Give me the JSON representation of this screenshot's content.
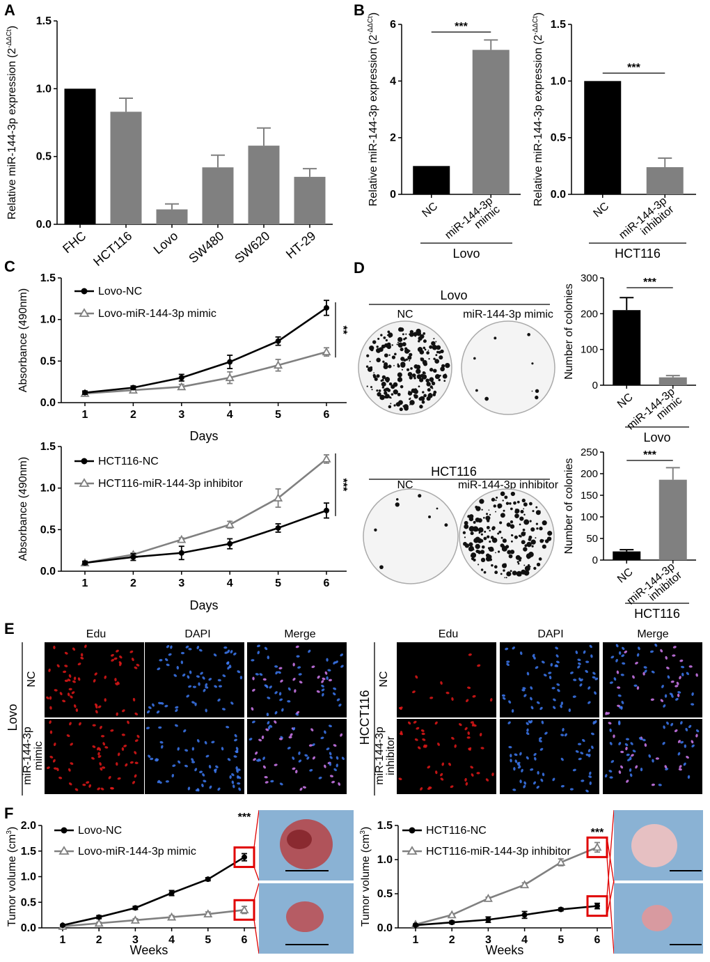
{
  "colors": {
    "black": "#000000",
    "gray": "#808080",
    "red": "#e00000",
    "dish": "#efefef"
  },
  "panels": {
    "A": "A",
    "B": "B",
    "C": "C",
    "D": "D",
    "E": "E",
    "F": "F"
  },
  "chart_data": [
    {
      "id": "A",
      "type": "bar",
      "ylabel": "Relative miR-144-3p expression (2-ΔΔCt)",
      "categories": [
        "FHC",
        "HCT116",
        "Lovo",
        "SW480",
        "SW620",
        "HT-29"
      ],
      "values": [
        1.0,
        0.83,
        0.11,
        0.42,
        0.58,
        0.35
      ],
      "errors": [
        0,
        0.1,
        0.04,
        0.09,
        0.13,
        0.06
      ],
      "bar_colors": [
        "black",
        "gray",
        "gray",
        "gray",
        "gray",
        "gray"
      ],
      "yticks": [
        "0.0",
        "0.5",
        "1.0",
        "1.5"
      ],
      "ylim": [
        0,
        1.5
      ]
    },
    {
      "id": "B1",
      "type": "bar",
      "ylabel": "Relative miR-144-3p expression (2-ΔΔCt)",
      "categories": [
        "NC",
        "miR-144-3p mimic"
      ],
      "values": [
        1.0,
        5.1
      ],
      "errors": [
        0,
        0.35
      ],
      "bar_colors": [
        "black",
        "gray"
      ],
      "yticks": [
        "0",
        "2",
        "4",
        "6"
      ],
      "ylim": [
        0,
        6
      ],
      "group": "Lovo",
      "significance": "***"
    },
    {
      "id": "B2",
      "type": "bar",
      "ylabel": "Relative miR-144-3p expression (2-ΔΔCt)",
      "categories": [
        "NC",
        "miR-144-3p inhibitor"
      ],
      "values": [
        1.0,
        0.24
      ],
      "errors": [
        0,
        0.08
      ],
      "bar_colors": [
        "black",
        "gray"
      ],
      "yticks": [
        "0.0",
        "0.5",
        "1.0",
        "1.5"
      ],
      "ylim": [
        0,
        1.5
      ],
      "group": "HCT116",
      "significance": "***"
    },
    {
      "id": "C1",
      "type": "line",
      "xlabel": "Days",
      "ylabel": "Absorbance (490nm)",
      "x": [
        1,
        2,
        3,
        4,
        5,
        6
      ],
      "xticks": [
        "1",
        "2",
        "3",
        "4",
        "5",
        "6"
      ],
      "yticks": [
        "0.0",
        "0.5",
        "1.0",
        "1.5"
      ],
      "ylim": [
        0,
        1.5
      ],
      "series": [
        {
          "name": "Lovo-NC",
          "color": "black",
          "values": [
            0.12,
            0.18,
            0.3,
            0.49,
            0.74,
            1.14
          ],
          "errors": [
            0.02,
            0.02,
            0.04,
            0.08,
            0.05,
            0.09
          ]
        },
        {
          "name": "Lovo-miR-144-3p mimic",
          "color": "gray",
          "values": [
            0.11,
            0.15,
            0.19,
            0.3,
            0.45,
            0.61
          ],
          "errors": [
            0.02,
            0.02,
            0.03,
            0.07,
            0.07,
            0.05
          ]
        }
      ],
      "significance": "**"
    },
    {
      "id": "C2",
      "type": "line",
      "xlabel": "Days",
      "ylabel": "Absorbance (490nm)",
      "x": [
        1,
        2,
        3,
        4,
        5,
        6
      ],
      "xticks": [
        "1",
        "2",
        "3",
        "4",
        "5",
        "6"
      ],
      "yticks": [
        "0.0",
        "0.5",
        "1.0",
        "1.5"
      ],
      "ylim": [
        0,
        1.5
      ],
      "series": [
        {
          "name": "HCT116-NC",
          "color": "black",
          "values": [
            0.1,
            0.17,
            0.22,
            0.33,
            0.52,
            0.73
          ],
          "errors": [
            0.02,
            0.04,
            0.08,
            0.06,
            0.05,
            0.09
          ]
        },
        {
          "name": "HCT116-miR-144-3p inhibitor",
          "color": "gray",
          "values": [
            0.1,
            0.2,
            0.38,
            0.56,
            0.88,
            1.35
          ],
          "errors": [
            0.02,
            0.02,
            0.02,
            0.04,
            0.11,
            0.05
          ]
        }
      ],
      "significance": "***"
    },
    {
      "id": "D1",
      "type": "bar",
      "ylabel": "Number of colonies",
      "categories": [
        "NC",
        "miR-144-3p mimic"
      ],
      "values": [
        210,
        22
      ],
      "errors": [
        35,
        5
      ],
      "bar_colors": [
        "black",
        "gray"
      ],
      "yticks": [
        "0",
        "100",
        "200",
        "300"
      ],
      "ylim": [
        0,
        300
      ],
      "group": "Lovo",
      "significance": "***"
    },
    {
      "id": "D2",
      "type": "bar",
      "ylabel": "Number of colonies",
      "categories": [
        "NC",
        "miR-144-3p inhibitor"
      ],
      "values": [
        20,
        186
      ],
      "errors": [
        4,
        28
      ],
      "bar_colors": [
        "black",
        "gray"
      ],
      "yticks": [
        "0",
        "50",
        "100",
        "150",
        "200",
        "250"
      ],
      "ylim": [
        0,
        250
      ],
      "group": "HCT116",
      "significance": "***"
    },
    {
      "id": "F1",
      "type": "line",
      "xlabel": "Weeks",
      "ylabel": "Tumor volume (cm3)",
      "x": [
        1,
        2,
        3,
        4,
        5,
        6
      ],
      "xticks": [
        "1",
        "2",
        "3",
        "4",
        "5",
        "6"
      ],
      "yticks": [
        "0.0",
        "0.5",
        "1.0",
        "1.5",
        "2.0"
      ],
      "ylim": [
        0,
        2.0
      ],
      "series": [
        {
          "name": "Lovo-NC",
          "color": "black",
          "values": [
            0.05,
            0.21,
            0.39,
            0.68,
            0.95,
            1.38
          ],
          "errors": [
            0.01,
            0.03,
            0.03,
            0.05,
            0.03,
            0.07
          ]
        },
        {
          "name": "Lovo-miR-144-3p mimic",
          "color": "gray",
          "values": [
            0.03,
            0.09,
            0.15,
            0.21,
            0.27,
            0.35
          ],
          "errors": [
            0.01,
            0.02,
            0.03,
            0.03,
            0.04,
            0.07
          ]
        }
      ],
      "significance": "***"
    },
    {
      "id": "F2",
      "type": "line",
      "xlabel": "Weeks",
      "ylabel": "Tumor volume (cm3)",
      "x": [
        1,
        2,
        3,
        4,
        5,
        6
      ],
      "xticks": [
        "1",
        "2",
        "3",
        "4",
        "5",
        "6"
      ],
      "yticks": [
        "0.0",
        "0.5",
        "1.0",
        "1.5"
      ],
      "ylim": [
        0,
        1.5
      ],
      "series": [
        {
          "name": "HCT116-NC",
          "color": "black",
          "values": [
            0.04,
            0.08,
            0.12,
            0.19,
            0.27,
            0.32
          ],
          "errors": [
            0.01,
            0.02,
            0.04,
            0.05,
            0.02,
            0.04
          ]
        },
        {
          "name": "HCT116-miR-144-3p inhibitor",
          "color": "gray",
          "values": [
            0.05,
            0.19,
            0.43,
            0.63,
            0.96,
            1.18
          ],
          "errors": [
            0.01,
            0.01,
            0.02,
            0.03,
            0.05,
            0.07
          ]
        }
      ],
      "significance": "***"
    }
  ],
  "panelD": {
    "lovo_title": "Lovo",
    "lovo_nc": "NC",
    "lovo_mimic": "miR-144-3p mimic",
    "hct_title": "HCT116",
    "hct_nc": "NC",
    "hct_inhibitor": "miR-144-3p inhibitor"
  },
  "panelE": {
    "edu": "Edu",
    "dapi": "DAPI",
    "merge": "Merge",
    "left_cell": "Lovo",
    "right_cell": "HCCT116",
    "nc": "NC",
    "mimic_1": "miR-144-3p",
    "mimic_2": "mimic",
    "inhibitor_1": "miR-144-3p",
    "inhibitor_2": "inhibitor"
  }
}
